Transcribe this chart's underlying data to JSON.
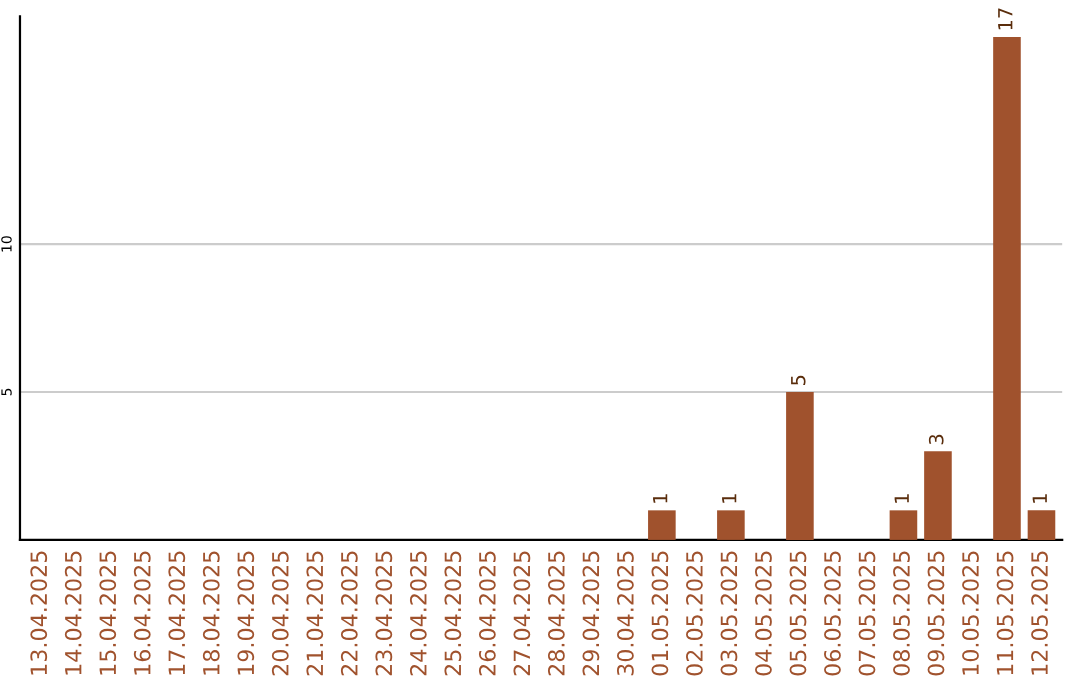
{
  "chart_data": {
    "type": "bar",
    "categories": [
      "13.04.2025",
      "14.04.2025",
      "15.04.2025",
      "16.04.2025",
      "17.04.2025",
      "18.04.2025",
      "19.04.2025",
      "20.04.2025",
      "21.04.2025",
      "22.04.2025",
      "23.04.2025",
      "24.04.2025",
      "25.04.2025",
      "26.04.2025",
      "27.04.2025",
      "28.04.2025",
      "29.04.2025",
      "30.04.2025",
      "01.05.2025",
      "02.05.2025",
      "03.05.2025",
      "04.05.2025",
      "05.05.2025",
      "06.05.2025",
      "07.05.2025",
      "08.05.2025",
      "09.05.2025",
      "10.05.2025",
      "11.05.2025",
      "12.05.2025"
    ],
    "values": [
      0,
      0,
      0,
      0,
      0,
      0,
      0,
      0,
      0,
      0,
      0,
      0,
      0,
      0,
      0,
      0,
      0,
      0,
      1,
      0,
      1,
      0,
      5,
      0,
      0,
      1,
      3,
      0,
      17,
      1
    ],
    "value_labels": [
      null,
      null,
      null,
      null,
      null,
      null,
      null,
      null,
      null,
      null,
      null,
      null,
      null,
      null,
      null,
      null,
      null,
      null,
      "1",
      null,
      "1",
      null,
      "5",
      null,
      null,
      "1",
      "3",
      null,
      "17",
      "1"
    ],
    "color": "#a0522d",
    "ylim": [
      0,
      17.7
    ],
    "yticks": [
      5,
      10
    ],
    "grid": "y"
  }
}
